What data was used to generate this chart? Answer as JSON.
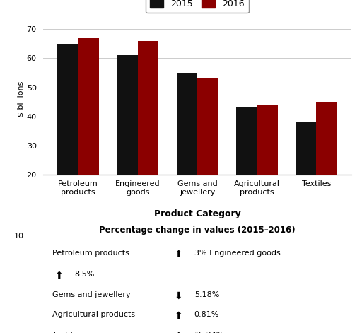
{
  "categories": [
    "Petroleum\nproducts",
    "Engineered\ngoods",
    "Gems and\njewellery",
    "Agricultural\nproducts",
    "Textiles"
  ],
  "values_2015": [
    65,
    61,
    55,
    43,
    38
  ],
  "values_2016": [
    67,
    66,
    53,
    44,
    45
  ],
  "color_2015": "#111111",
  "color_2016": "#8B0000",
  "ylabel": "$ bi  ions",
  "xlabel": "Product Category",
  "ylim": [
    20,
    72
  ],
  "yticks": [
    20,
    30,
    40,
    50,
    60,
    70
  ],
  "legend_labels": [
    "2015",
    "2016"
  ],
  "table_title": "Percentage change in values (2015–2016)",
  "bar_width": 0.35,
  "grid_color": "#cccccc",
  "fig_bg": "#ffffff"
}
